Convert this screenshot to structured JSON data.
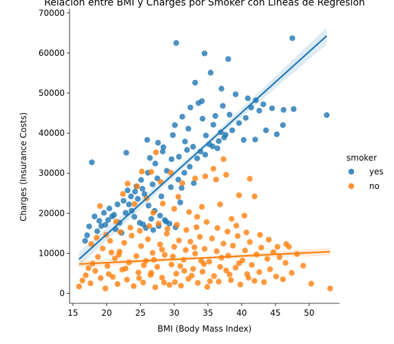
{
  "chart_data": {
    "type": "scatter",
    "title": "Relación entre BMI y Charges por Smoker con Líneas de Regresión",
    "xlabel": "BMI (Body Mass Index)",
    "ylabel": "Charges (Insurance Costs)",
    "xlim": [
      14.5,
      54.5
    ],
    "ylim": [
      -2500,
      71000
    ],
    "xticks": [
      15,
      20,
      25,
      30,
      35,
      40,
      45,
      50
    ],
    "yticks": [
      0,
      10000,
      20000,
      30000,
      40000,
      50000,
      60000,
      70000
    ],
    "legend": {
      "title": "smoker",
      "position": "right",
      "entries": [
        {
          "label": "yes",
          "color": "#1f77b4"
        },
        {
          "label": "no",
          "color": "#ff7f0e"
        }
      ]
    },
    "series": [
      {
        "name": "yes",
        "color": "#1f77b4",
        "regression": {
          "x": [
            15.9,
            52.6
          ],
          "y": [
            8500,
            64300
          ]
        },
        "band_half_width": [
          1800,
          2100
        ],
        "points": [
          [
            17.8,
            32700
          ],
          [
            52.6,
            44500
          ],
          [
            30.3,
            62500
          ],
          [
            34.5,
            59900
          ],
          [
            35.4,
            55100
          ],
          [
            33.1,
            52600
          ],
          [
            38.0,
            58500
          ],
          [
            47.5,
            63700
          ],
          [
            37.0,
            51100
          ],
          [
            39.1,
            49700
          ],
          [
            40.9,
            48700
          ],
          [
            42.1,
            48200
          ],
          [
            43.2,
            47200
          ],
          [
            44.5,
            46200
          ],
          [
            46.2,
            45800
          ],
          [
            47.7,
            46000
          ],
          [
            45.2,
            39700
          ],
          [
            46.1,
            42000
          ],
          [
            42.0,
            38400
          ],
          [
            40.3,
            38300
          ],
          [
            22.9,
            35100
          ],
          [
            26.0,
            38300
          ],
          [
            27.6,
            37600
          ],
          [
            28.3,
            35400
          ],
          [
            26.4,
            33800
          ],
          [
            30.1,
            42000
          ],
          [
            31.2,
            44100
          ],
          [
            32.4,
            46400
          ],
          [
            33.6,
            47500
          ],
          [
            34.2,
            43600
          ],
          [
            35.8,
            42100
          ],
          [
            36.9,
            40200
          ],
          [
            37.4,
            38900
          ],
          [
            38.2,
            44600
          ],
          [
            31.6,
            37900
          ],
          [
            32.8,
            36600
          ],
          [
            33.9,
            35400
          ],
          [
            34.7,
            39400
          ],
          [
            35.2,
            37200
          ],
          [
            36.4,
            36200
          ],
          [
            30.7,
            34100
          ],
          [
            31.9,
            35800
          ],
          [
            29.6,
            33500
          ],
          [
            28.9,
            30600
          ],
          [
            27.5,
            28700
          ],
          [
            26.8,
            27200
          ],
          [
            25.3,
            26100
          ],
          [
            24.2,
            25400
          ],
          [
            23.6,
            24200
          ],
          [
            22.5,
            23100
          ],
          [
            21.6,
            22200
          ],
          [
            20.4,
            21200
          ],
          [
            19.6,
            20100
          ],
          [
            18.2,
            19200
          ],
          [
            17.4,
            16700
          ],
          [
            17.1,
            14500
          ],
          [
            16.8,
            13100
          ],
          [
            18.6,
            15500
          ],
          [
            19.2,
            16800
          ],
          [
            20.2,
            18300
          ],
          [
            21.1,
            19600
          ],
          [
            21.9,
            17600
          ],
          [
            22.8,
            20100
          ],
          [
            23.3,
            22200
          ],
          [
            24.6,
            23600
          ],
          [
            25.6,
            24800
          ],
          [
            26.2,
            21900
          ],
          [
            27.1,
            20600
          ],
          [
            27.9,
            19400
          ],
          [
            28.6,
            18300
          ],
          [
            29.3,
            17400
          ],
          [
            30.2,
            16500
          ],
          [
            25.4,
            17200
          ],
          [
            26.6,
            18600
          ],
          [
            24.1,
            19100
          ],
          [
            23.7,
            20600
          ],
          [
            22.2,
            15100
          ],
          [
            21.3,
            16000
          ],
          [
            28.1,
            24200
          ],
          [
            29.5,
            26500
          ],
          [
            30.6,
            28400
          ],
          [
            31.5,
            30100
          ],
          [
            32.3,
            31600
          ],
          [
            33.4,
            33700
          ],
          [
            34.6,
            34600
          ],
          [
            35.7,
            36700
          ],
          [
            36.6,
            38000
          ],
          [
            37.6,
            39600
          ],
          [
            38.6,
            40700
          ],
          [
            39.6,
            42500
          ],
          [
            40.6,
            43800
          ],
          [
            41.4,
            46400
          ],
          [
            42.6,
            45600
          ],
          [
            43.6,
            40700
          ],
          [
            36.1,
            44300
          ],
          [
            37.2,
            46800
          ],
          [
            34.1,
            48000
          ],
          [
            32.1,
            41100
          ],
          [
            29.8,
            39500
          ],
          [
            28.4,
            36500
          ],
          [
            27.2,
            32400
          ],
          [
            26.1,
            30100
          ],
          [
            25.1,
            28300
          ],
          [
            24.4,
            26700
          ],
          [
            23.1,
            25700
          ],
          [
            20.8,
            19200
          ],
          [
            19.8,
            17100
          ],
          [
            18.9,
            18100
          ],
          [
            27.7,
            16800
          ],
          [
            28.8,
            17900
          ],
          [
            26.9,
            15800
          ],
          [
            30.9,
            22700
          ],
          [
            31.1,
            26300
          ],
          [
            32.9,
            27500
          ],
          [
            24.9,
            17600
          ],
          [
            25.8,
            16300
          ]
        ]
      },
      {
        "name": "no",
        "color": "#ff7f0e",
        "regression": {
          "x": [
            15.9,
            53.1
          ],
          "y": [
            7300,
            10400
          ]
        },
        "band_half_width": [
          900,
          1000
        ],
        "points": [
          [
            15.9,
            1700
          ],
          [
            16.4,
            3200
          ],
          [
            16.9,
            4500
          ],
          [
            17.3,
            6300
          ],
          [
            17.6,
            2500
          ],
          [
            17.9,
            7400
          ],
          [
            18.3,
            5600
          ],
          [
            18.7,
            9100
          ],
          [
            19.1,
            3800
          ],
          [
            19.4,
            11200
          ],
          [
            19.8,
            1200
          ],
          [
            20.1,
            6800
          ],
          [
            20.5,
            13100
          ],
          [
            20.9,
            4100
          ],
          [
            21.2,
            8700
          ],
          [
            21.6,
            2300
          ],
          [
            21.9,
            10400
          ],
          [
            22.3,
            5900
          ],
          [
            22.6,
            12600
          ],
          [
            23.0,
            3400
          ],
          [
            23.3,
            7700
          ],
          [
            23.7,
            14400
          ],
          [
            24.0,
            1800
          ],
          [
            24.4,
            9300
          ],
          [
            24.7,
            5200
          ],
          [
            25.1,
            11800
          ],
          [
            25.4,
            2700
          ],
          [
            25.8,
            8100
          ],
          [
            26.1,
            13500
          ],
          [
            26.5,
            4600
          ],
          [
            26.8,
            10100
          ],
          [
            27.2,
            1500
          ],
          [
            27.5,
            6600
          ],
          [
            27.9,
            12200
          ],
          [
            28.2,
            3900
          ],
          [
            28.6,
            9600
          ],
          [
            28.9,
            14900
          ],
          [
            29.3,
            2100
          ],
          [
            29.6,
            7200
          ],
          [
            30.0,
            11600
          ],
          [
            30.3,
            4900
          ],
          [
            30.7,
            13200
          ],
          [
            31.0,
            1900
          ],
          [
            31.4,
            8400
          ],
          [
            31.7,
            10800
          ],
          [
            32.1,
            3600
          ],
          [
            32.4,
            12900
          ],
          [
            32.8,
            6100
          ],
          [
            33.1,
            9900
          ],
          [
            33.5,
            2600
          ],
          [
            33.8,
            14100
          ],
          [
            34.2,
            5400
          ],
          [
            34.5,
            11100
          ],
          [
            34.9,
            1600
          ],
          [
            35.2,
            7900
          ],
          [
            35.6,
            13700
          ],
          [
            35.9,
            4300
          ],
          [
            36.3,
            10500
          ],
          [
            36.6,
            2900
          ],
          [
            37.0,
            8900
          ],
          [
            37.3,
            12400
          ],
          [
            37.7,
            5700
          ],
          [
            38.0,
            9400
          ],
          [
            38.4,
            3300
          ],
          [
            38.7,
            11900
          ],
          [
            39.1,
            6400
          ],
          [
            39.4,
            14300
          ],
          [
            39.8,
            2200
          ],
          [
            40.1,
            8200
          ],
          [
            40.5,
            10700
          ],
          [
            40.8,
            4800
          ],
          [
            41.2,
            12800
          ],
          [
            41.5,
            7100
          ],
          [
            41.9,
            3100
          ],
          [
            42.2,
            9700
          ],
          [
            42.6,
            5300
          ],
          [
            42.9,
            11400
          ],
          [
            43.3,
            2800
          ],
          [
            43.8,
            8600
          ],
          [
            44.2,
            6000
          ],
          [
            44.7,
            10300
          ],
          [
            45.1,
            4200
          ],
          [
            45.6,
            9000
          ],
          [
            46.1,
            3500
          ],
          [
            46.5,
            7600
          ],
          [
            47.0,
            11600
          ],
          [
            47.4,
            5100
          ],
          [
            48.2,
            9800
          ],
          [
            49.1,
            6900
          ],
          [
            50.3,
            2400
          ],
          [
            53.1,
            1200
          ],
          [
            45.3,
            11600
          ],
          [
            46.6,
            12300
          ],
          [
            44.0,
            13400
          ],
          [
            42.7,
            14600
          ],
          [
            23.1,
            27400
          ],
          [
            24.5,
            26700
          ],
          [
            25.2,
            30400
          ],
          [
            26.6,
            30300
          ],
          [
            27.3,
            35200
          ],
          [
            28.0,
            27800
          ],
          [
            29.5,
            30100
          ],
          [
            30.6,
            24100
          ],
          [
            31.2,
            27500
          ],
          [
            33.1,
            28700
          ],
          [
            34.6,
            29200
          ],
          [
            36.2,
            28400
          ],
          [
            37.7,
            29600
          ],
          [
            39.6,
            24500
          ],
          [
            41.2,
            28600
          ],
          [
            37.3,
            33500
          ],
          [
            35.8,
            31100
          ],
          [
            22.4,
            24800
          ],
          [
            24.1,
            22300
          ],
          [
            25.9,
            23700
          ],
          [
            28.3,
            22400
          ],
          [
            30.0,
            21100
          ],
          [
            32.2,
            20300
          ],
          [
            34.1,
            21600
          ],
          [
            36.8,
            22200
          ],
          [
            38.5,
            18600
          ],
          [
            40.4,
            19400
          ],
          [
            41.9,
            24200
          ],
          [
            26.9,
            20100
          ],
          [
            33.4,
            19100
          ],
          [
            19.0,
            21800
          ],
          [
            21.4,
            17900
          ],
          [
            17.7,
            12300
          ],
          [
            18.5,
            13900
          ],
          [
            19.9,
            14600
          ],
          [
            20.7,
            10200
          ],
          [
            22.0,
            15300
          ],
          [
            23.5,
            16400
          ],
          [
            24.9,
            15600
          ],
          [
            26.3,
            16800
          ],
          [
            27.7,
            17400
          ],
          [
            29.0,
            16100
          ],
          [
            30.4,
            17100
          ],
          [
            31.8,
            15800
          ],
          [
            33.3,
            16500
          ],
          [
            34.8,
            17800
          ],
          [
            36.4,
            16300
          ],
          [
            37.9,
            15400
          ],
          [
            39.2,
            16900
          ],
          [
            40.7,
            15200
          ],
          [
            22.8,
            6200
          ],
          [
            24.8,
            3800
          ],
          [
            26.6,
            5100
          ],
          [
            28.5,
            2700
          ],
          [
            29.8,
            9200
          ],
          [
            30.9,
            6800
          ],
          [
            32.6,
            4400
          ],
          [
            34.0,
            8100
          ],
          [
            35.3,
            3000
          ],
          [
            36.8,
            6600
          ],
          [
            38.2,
            4700
          ],
          [
            39.6,
            7500
          ],
          [
            41.0,
            3900
          ],
          [
            27.0,
            8400
          ],
          [
            28.2,
            10900
          ],
          [
            30.1,
            2800
          ],
          [
            31.5,
            5600
          ],
          [
            33.0,
            11500
          ],
          [
            34.4,
            7300
          ],
          [
            25.5,
            7000
          ],
          [
            20.3,
            4800
          ],
          [
            21.8,
            9600
          ]
        ]
      }
    ]
  }
}
